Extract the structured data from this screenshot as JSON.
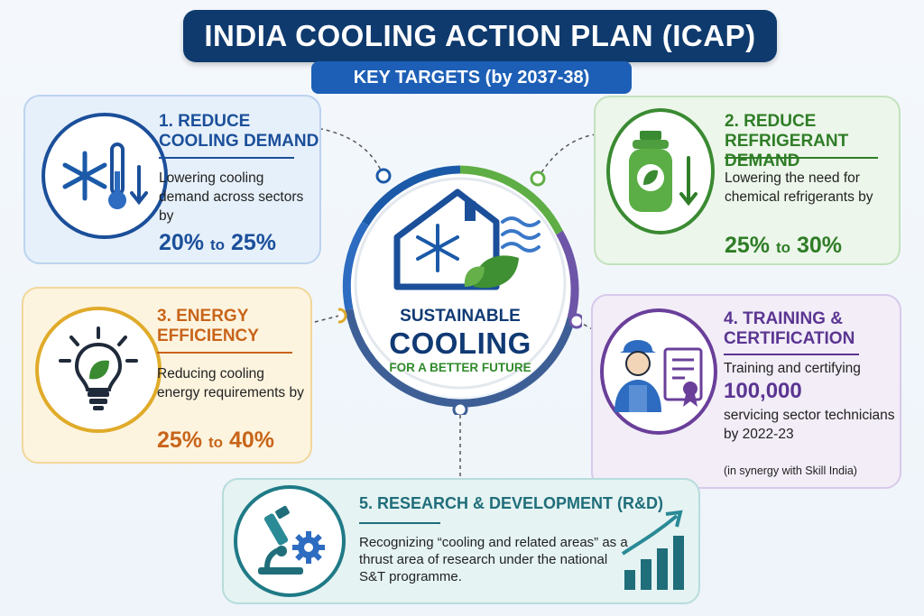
{
  "header": {
    "title": "INDIA COOLING ACTION PLAN (ICAP)",
    "subtitle": "KEY TARGETS (by 2037-38)"
  },
  "center": {
    "line1": "SUSTAINABLE",
    "line2": "COOLING",
    "line3": "FOR A BETTER FUTURE"
  },
  "cards": {
    "c1": {
      "heading_line1": "1. REDUCE",
      "heading_line2": "COOLING DEMAND",
      "desc": "Lowering cooling demand across sectors by",
      "target_from": "20%",
      "target_to_word": "to",
      "target_to": "25%",
      "icon": "snowflake-thermometer-icon",
      "color": "#1b4f9a"
    },
    "c2": {
      "heading_line1": "2. REDUCE",
      "heading_line2": "REFRIGERANT DEMAND",
      "desc": "Lowering the need for chemical refrigerants by",
      "target_from": "25%",
      "target_to_word": "to",
      "target_to": "30%",
      "icon": "refrigerant-cylinder-icon",
      "color": "#2f7d27"
    },
    "c3": {
      "heading_line1": "3. ENERGY",
      "heading_line2": "EFFICIENCY",
      "desc": "Reducing cooling energy requirements by",
      "target_from": "25%",
      "target_to_word": "to",
      "target_to": "40%",
      "icon": "lightbulb-leaf-icon",
      "color": "#c8651a"
    },
    "c4": {
      "heading_line1": "4. TRAINING &",
      "heading_line2": "CERTIFICATION",
      "desc_a": "Training and certifying",
      "big": "100,000",
      "desc_b": "servicing sector technicians by 2022-23",
      "note": "(in synergy with Skill India)",
      "icon": "technician-certificate-icon",
      "color": "#5b3592"
    },
    "c5": {
      "heading": "5. RESEARCH & DEVELOPMENT (R&D)",
      "desc": "Recognizing “cooling and related areas” as a thrust area of research under the national S&T programme.",
      "icon": "microscope-gear-icon",
      "color": "#1f6e7a"
    }
  }
}
